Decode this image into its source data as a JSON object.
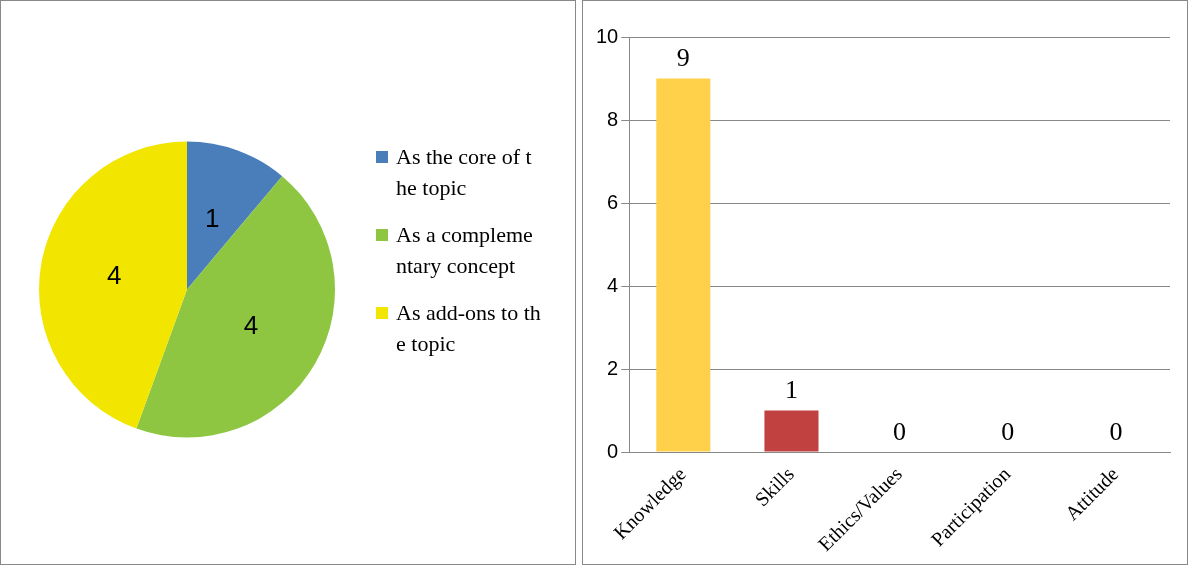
{
  "chart_data": [
    {
      "type": "pie",
      "categories": [
        "As the core of the topic",
        "As a complementary concept",
        "As add-ons to the topic"
      ],
      "values": [
        1,
        4,
        4
      ],
      "colors": [
        "#4a7ebb",
        "#8ec641",
        "#f2e600"
      ],
      "data_labels": true,
      "legend": "right"
    },
    {
      "type": "bar",
      "categories": [
        "Knowledge",
        "Skills",
        "Ethics/Values",
        "Participation",
        "Attitude"
      ],
      "values": [
        9,
        1,
        0,
        0,
        0
      ],
      "colors": [
        "#ffd04a",
        "#c0413f",
        "#8ec641",
        "#4a7ebb",
        "#f2e600"
      ],
      "ylim": [
        0,
        10
      ],
      "yticks": [
        0,
        2,
        4,
        6,
        8,
        10
      ],
      "grid": "y",
      "data_labels": true
    }
  ]
}
